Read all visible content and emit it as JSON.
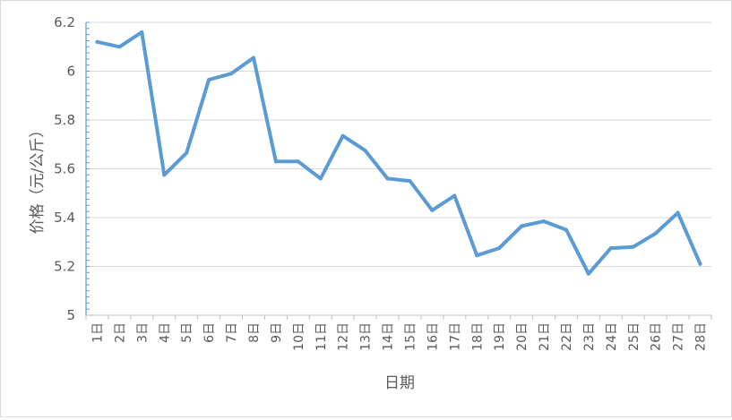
{
  "chart_data": {
    "type": "line",
    "title": "",
    "xlabel": "日期",
    "ylabel": "价格（元/公斤）",
    "ylim": [
      5,
      6.2
    ],
    "yticks": [
      "5",
      "5.2",
      "5.4",
      "5.6",
      "5.8",
      "6",
      "6.2"
    ],
    "grid": true,
    "categories": [
      "1日",
      "2日",
      "3日",
      "4日",
      "5日",
      "6日",
      "7日",
      "8日",
      "9日",
      "10日",
      "11日",
      "12日",
      "13日",
      "14日",
      "15日",
      "16日",
      "17日",
      "18日",
      "19日",
      "20日",
      "21日",
      "22日",
      "23日",
      "24日",
      "25日",
      "26日",
      "27日",
      "28日"
    ],
    "series": [
      {
        "color": "#5b9bd5",
        "values": [
          6.12,
          6.1,
          6.16,
          5.575,
          5.665,
          5.965,
          5.99,
          6.055,
          5.63,
          5.63,
          5.56,
          5.735,
          5.675,
          5.56,
          5.55,
          5.43,
          5.49,
          5.245,
          5.275,
          5.365,
          5.385,
          5.35,
          5.17,
          5.275,
          5.28,
          5.335,
          5.42,
          5.21
        ]
      }
    ]
  }
}
